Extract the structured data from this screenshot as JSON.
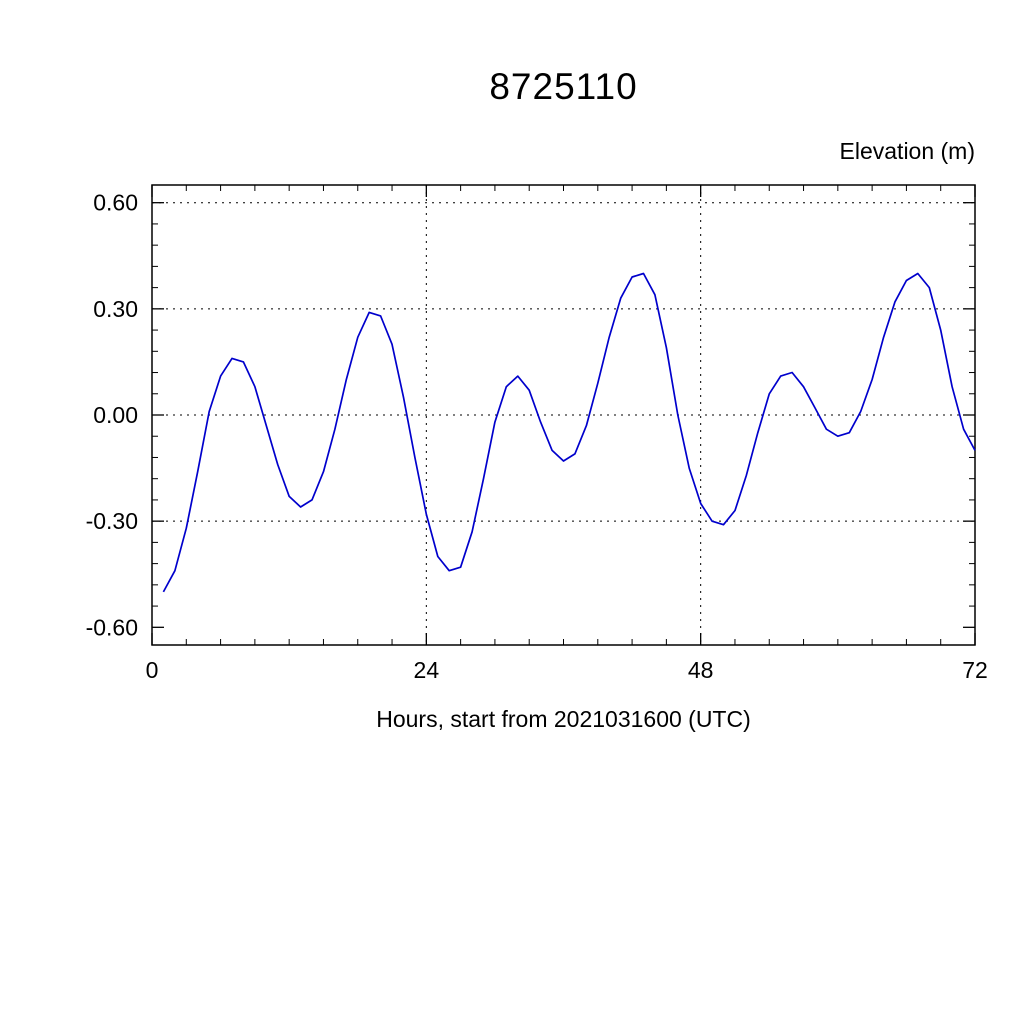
{
  "chart_data": {
    "type": "line",
    "title": "8725110",
    "right_label": "Elevation (m)",
    "xlabel": "Hours, start from 2021031600 (UTC)",
    "x_range": [
      0,
      72
    ],
    "y_range": [
      -0.65,
      0.65
    ],
    "x_major_ticks": [
      {
        "v": 0,
        "label": "0"
      },
      {
        "v": 24,
        "label": "24"
      },
      {
        "v": 48,
        "label": "48"
      },
      {
        "v": 72,
        "label": "72"
      }
    ],
    "x_minor_step": 3,
    "y_major_ticks": [
      {
        "v": 0.6,
        "label": "0.60"
      },
      {
        "v": 0.3,
        "label": "0.30"
      },
      {
        "v": 0.0,
        "label": "0.00"
      },
      {
        "v": -0.3,
        "label": "-0.30"
      },
      {
        "v": -0.6,
        "label": "-0.60"
      }
    ],
    "y_minor_step": 0.06,
    "grid_x": [
      24,
      48
    ],
    "grid_y": [
      0.6,
      0.3,
      0.0,
      -0.3
    ],
    "line_color": "#0000cc",
    "series": [
      {
        "name": "elevation",
        "points": [
          [
            1,
            -0.5
          ],
          [
            2,
            -0.44
          ],
          [
            3,
            -0.32
          ],
          [
            4,
            -0.16
          ],
          [
            5,
            0.01
          ],
          [
            6,
            0.11
          ],
          [
            7,
            0.16
          ],
          [
            8,
            0.15
          ],
          [
            9,
            0.08
          ],
          [
            10,
            -0.03
          ],
          [
            11,
            -0.14
          ],
          [
            12,
            -0.23
          ],
          [
            13,
            -0.26
          ],
          [
            14,
            -0.24
          ],
          [
            15,
            -0.16
          ],
          [
            16,
            -0.04
          ],
          [
            17,
            0.1
          ],
          [
            18,
            0.22
          ],
          [
            19,
            0.29
          ],
          [
            20,
            0.28
          ],
          [
            21,
            0.2
          ],
          [
            22,
            0.05
          ],
          [
            23,
            -0.12
          ],
          [
            24,
            -0.28
          ],
          [
            25,
            -0.4
          ],
          [
            26,
            -0.44
          ],
          [
            27,
            -0.43
          ],
          [
            28,
            -0.33
          ],
          [
            29,
            -0.18
          ],
          [
            30,
            -0.02
          ],
          [
            31,
            0.08
          ],
          [
            32,
            0.11
          ],
          [
            33,
            0.07
          ],
          [
            34,
            -0.02
          ],
          [
            35,
            -0.1
          ],
          [
            36,
            -0.13
          ],
          [
            37,
            -0.11
          ],
          [
            38,
            -0.03
          ],
          [
            39,
            0.09
          ],
          [
            40,
            0.22
          ],
          [
            41,
            0.33
          ],
          [
            42,
            0.39
          ],
          [
            43,
            0.4
          ],
          [
            44,
            0.34
          ],
          [
            45,
            0.19
          ],
          [
            46,
            0.0
          ],
          [
            47,
            -0.15
          ],
          [
            48,
            -0.25
          ],
          [
            49,
            -0.3
          ],
          [
            50,
            -0.31
          ],
          [
            51,
            -0.27
          ],
          [
            52,
            -0.17
          ],
          [
            53,
            -0.05
          ],
          [
            54,
            0.06
          ],
          [
            55,
            0.11
          ],
          [
            56,
            0.12
          ],
          [
            57,
            0.08
          ],
          [
            58,
            0.02
          ],
          [
            59,
            -0.04
          ],
          [
            60,
            -0.06
          ],
          [
            61,
            -0.05
          ],
          [
            62,
            0.01
          ],
          [
            63,
            0.1
          ],
          [
            64,
            0.22
          ],
          [
            65,
            0.32
          ],
          [
            66,
            0.38
          ],
          [
            67,
            0.4
          ],
          [
            68,
            0.36
          ],
          [
            69,
            0.24
          ],
          [
            70,
            0.08
          ],
          [
            71,
            -0.04
          ],
          [
            72,
            -0.1
          ]
        ]
      }
    ]
  }
}
